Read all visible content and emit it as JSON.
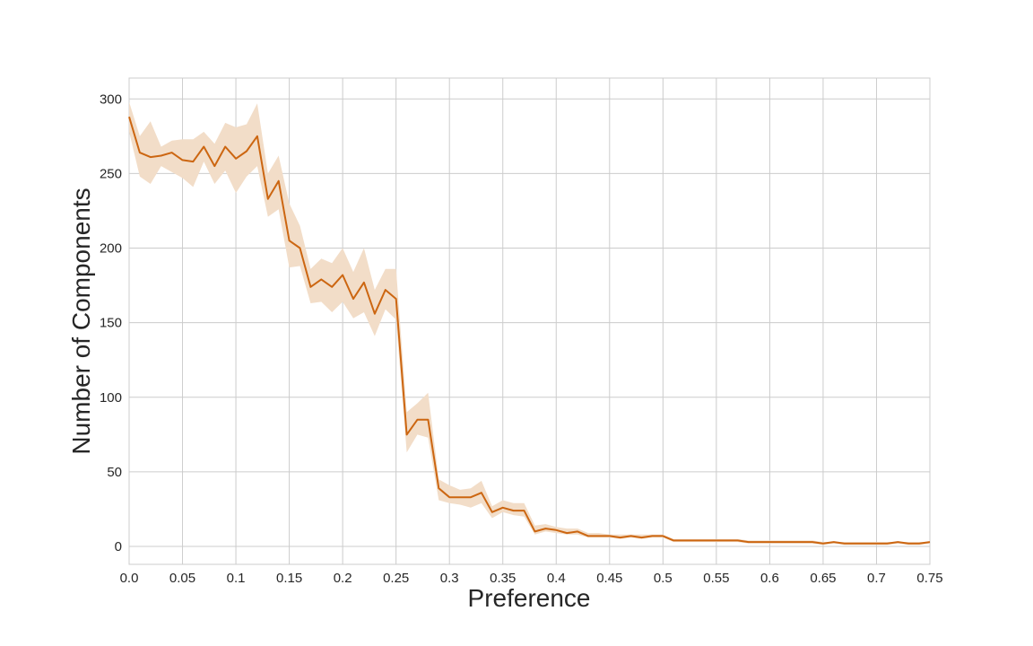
{
  "chart_data": {
    "type": "line",
    "title": "",
    "xlabel": "Preference",
    "ylabel": "Number of Components",
    "xlim": [
      0.0,
      0.75
    ],
    "ylim": [
      -12,
      314
    ],
    "grid": true,
    "legend": "none",
    "x_ticks": [
      "0.0",
      "0.05",
      "0.1",
      "0.15",
      "0.2",
      "0.25",
      "0.3",
      "0.35",
      "0.4",
      "0.45",
      "0.5",
      "0.55",
      "0.6",
      "0.65",
      "0.7",
      "0.75"
    ],
    "y_ticks": [
      "0",
      "50",
      "100",
      "150",
      "200",
      "250",
      "300"
    ],
    "colors": {
      "line": "#cc6611",
      "band": "#f2ddc8"
    },
    "series": [
      {
        "x": [
          0.0,
          0.01,
          0.02,
          0.03,
          0.04,
          0.05,
          0.06,
          0.07,
          0.08,
          0.09,
          0.1,
          0.11,
          0.12,
          0.13,
          0.14,
          0.15,
          0.16,
          0.17,
          0.18,
          0.19,
          0.2,
          0.21,
          0.22,
          0.23,
          0.24,
          0.25,
          0.26,
          0.27,
          0.28,
          0.29,
          0.3,
          0.31,
          0.32,
          0.33,
          0.34,
          0.35,
          0.36,
          0.37,
          0.38,
          0.39,
          0.4,
          0.41,
          0.42,
          0.43,
          0.44,
          0.45,
          0.46,
          0.47,
          0.48,
          0.49,
          0.5,
          0.51,
          0.52,
          0.53,
          0.54,
          0.55,
          0.56,
          0.57,
          0.58,
          0.59,
          0.6,
          0.61,
          0.62,
          0.63,
          0.64,
          0.65,
          0.66,
          0.67,
          0.68,
          0.69,
          0.7,
          0.71,
          0.72,
          0.73,
          0.74,
          0.75
        ],
        "values": [
          288,
          264,
          261,
          262,
          264,
          259,
          258,
          268,
          255,
          268,
          260,
          265,
          275,
          233,
          245,
          205,
          200,
          174,
          179,
          174,
          182,
          166,
          177,
          156,
          172,
          166,
          75,
          85,
          85,
          39,
          33,
          33,
          33,
          36,
          23,
          26,
          24,
          24,
          10,
          12,
          11,
          9,
          10,
          7,
          7,
          7,
          6,
          7,
          6,
          7,
          7,
          4,
          4,
          4,
          4,
          4,
          4,
          4,
          3,
          3,
          3,
          3,
          3,
          3,
          3,
          2,
          3,
          2,
          2,
          2,
          2,
          2,
          3,
          2,
          2,
          3
        ],
        "upper": [
          298,
          275,
          285,
          268,
          272,
          273,
          273,
          278,
          270,
          284,
          281,
          283,
          297,
          250,
          262,
          230,
          215,
          186,
          193,
          190,
          200,
          184,
          200,
          172,
          186,
          186,
          90,
          96,
          103,
          45,
          41,
          38,
          39,
          44,
          27,
          31,
          29,
          29,
          14,
          15,
          13,
          12,
          12,
          9,
          9,
          8,
          8,
          8,
          8,
          8,
          8,
          5,
          5,
          5,
          5,
          5,
          5,
          5,
          4,
          4,
          4,
          4,
          4,
          4,
          4,
          3,
          3,
          3,
          3,
          3,
          3,
          3,
          3,
          3,
          3,
          3
        ],
        "lower": [
          278,
          248,
          243,
          255,
          251,
          247,
          241,
          258,
          243,
          252,
          237,
          248,
          255,
          221,
          226,
          187,
          188,
          163,
          164,
          157,
          164,
          153,
          157,
          141,
          159,
          152,
          63,
          75,
          73,
          31,
          29,
          28,
          26,
          29,
          19,
          23,
          21,
          20,
          8,
          10,
          9,
          8,
          8,
          6,
          6,
          6,
          5,
          6,
          5,
          6,
          6,
          3,
          3,
          3,
          3,
          3,
          3,
          3,
          2,
          2,
          2,
          2,
          2,
          2,
          2,
          1,
          2,
          1,
          1,
          1,
          1,
          1,
          2,
          1,
          1,
          2
        ]
      }
    ]
  }
}
